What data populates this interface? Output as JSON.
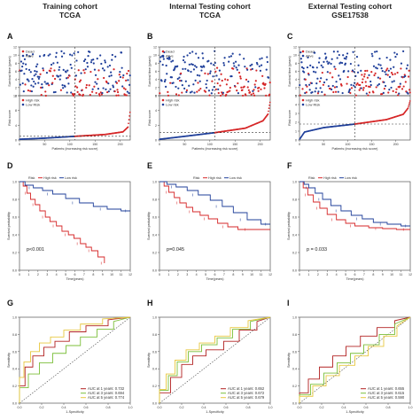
{
  "colors": {
    "dead": "#d62728",
    "alive": "#1f3f9a",
    "high_risk": "#d62728",
    "low_risk": "#1f3f9a",
    "auc_1y": "#b22222",
    "auc_3y": "#7cbf3a",
    "auc_5y": "#e8c840",
    "diagonal": "#444444"
  },
  "columns": [
    {
      "title": "Training cohort",
      "subtitle": "TCGA"
    },
    {
      "title": "Internal Testing cohort",
      "subtitle": "TCGA"
    },
    {
      "title": "External Testing cohort",
      "subtitle": "GSE17538"
    }
  ],
  "chart_data": [
    {
      "panel": "A",
      "type": "scatter",
      "subtype": "risk_plot",
      "n_patients": 220,
      "cutoff_patient": 110,
      "top": {
        "ylabel": "Survival time (years)",
        "ylim": [
          0,
          12
        ],
        "yticks": [
          0,
          2,
          4,
          6,
          8,
          10,
          12
        ],
        "legend": [
          "Dead",
          "Alive"
        ],
        "legend_position": "top-left"
      },
      "bottom": {
        "ylabel": "Risk score",
        "ylim": [
          0,
          12
        ],
        "yticks": [
          0,
          4,
          8,
          12
        ],
        "threshold": 1.0,
        "legend": [
          "High risk",
          "Low Risk"
        ],
        "legend_position": "top-left",
        "risk_curve": [
          [
            0,
            0.2
          ],
          [
            50,
            0.5
          ],
          [
            110,
            1.0
          ],
          [
            170,
            1.5
          ],
          [
            205,
            2.2
          ],
          [
            215,
            3.5
          ],
          [
            220,
            8.5
          ]
        ]
      },
      "xlabel": "Patients (increasing risk socre)",
      "xticks": [
        0,
        50,
        100,
        150,
        200
      ]
    },
    {
      "panel": "B",
      "type": "scatter",
      "subtype": "risk_plot",
      "n_patients": 220,
      "cutoff_patient": 110,
      "top": {
        "ylabel": "Survival time (years)",
        "ylim": [
          0,
          12
        ],
        "yticks": [
          0,
          2,
          4,
          6,
          8,
          10,
          12
        ],
        "legend": [
          "Dead",
          "Alive"
        ],
        "legend_position": "top-left"
      },
      "bottom": {
        "ylabel": "Risk score",
        "ylim": [
          0,
          6
        ],
        "yticks": [
          0,
          2,
          4,
          6
        ],
        "threshold": 1.0,
        "legend": [
          "High risk",
          "Low risk"
        ],
        "legend_position": "top-left",
        "risk_curve": [
          [
            0,
            0.1
          ],
          [
            50,
            0.5
          ],
          [
            110,
            1.0
          ],
          [
            170,
            1.6
          ],
          [
            205,
            2.6
          ],
          [
            215,
            3.5
          ],
          [
            220,
            5.5
          ]
        ]
      },
      "xlabel": "Patients (increasing risk score)",
      "xticks": [
        0,
        50,
        100,
        150,
        200
      ]
    },
    {
      "panel": "C",
      "type": "scatter",
      "subtype": "risk_plot",
      "n_patients": 230,
      "cutoff_patient": 115,
      "top": {
        "ylabel": "Survival time (years)",
        "ylim": [
          0,
          12
        ],
        "yticks": [
          0,
          2,
          4,
          6,
          8,
          10,
          12
        ],
        "legend": [
          "Dead",
          "Alive"
        ],
        "legend_position": "top-left"
      },
      "bottom": {
        "ylabel": "Risk score",
        "ylim": [
          0,
          5
        ],
        "yticks": [
          0,
          1,
          2,
          3,
          4,
          5
        ],
        "threshold": 1.8,
        "legend": [
          "High risk",
          "Low Risk"
        ],
        "legend_position": "top-left",
        "risk_curve": [
          [
            0,
            0.1
          ],
          [
            10,
            0.9
          ],
          [
            50,
            1.4
          ],
          [
            115,
            1.8
          ],
          [
            180,
            2.3
          ],
          [
            215,
            2.9
          ],
          [
            225,
            3.6
          ],
          [
            230,
            4.6
          ]
        ]
      },
      "xlabel": "Patients (increasing risk score)",
      "xticks": [
        0,
        50,
        100,
        150,
        200
      ]
    },
    {
      "panel": "D",
      "type": "line",
      "subtype": "kaplan_meier",
      "xlabel": "Time(years)",
      "ylabel": "Survival probability",
      "xlim": [
        0,
        12
      ],
      "ylim": [
        0,
        1
      ],
      "xticks": [
        0,
        1,
        2,
        3,
        4,
        5,
        6,
        7,
        8,
        9,
        10,
        11,
        12
      ],
      "yticks": [
        0.0,
        0.2,
        0.4,
        0.6,
        0.8,
        1.0
      ],
      "legend_title": "Risk",
      "legend": [
        "High risk",
        "Low risk"
      ],
      "legend_position": "top-left",
      "annotation": "p<0.001",
      "series": [
        {
          "name": "High risk",
          "x": [
            0,
            0.4,
            0.8,
            1.2,
            1.7,
            2.2,
            2.8,
            3.3,
            4.0,
            4.6,
            5.3,
            5.9,
            6.6,
            7.2,
            7.8,
            8.5,
            9.2
          ],
          "y": [
            1.0,
            0.95,
            0.87,
            0.8,
            0.74,
            0.67,
            0.6,
            0.55,
            0.5,
            0.44,
            0.4,
            0.36,
            0.3,
            0.26,
            0.22,
            0.15,
            0.08
          ]
        },
        {
          "name": "Low risk",
          "x": [
            0,
            0.6,
            1.5,
            2.5,
            3.6,
            5.0,
            6.5,
            8.0,
            9.5,
            11.0,
            12.0
          ],
          "y": [
            1.0,
            0.96,
            0.93,
            0.9,
            0.86,
            0.81,
            0.76,
            0.72,
            0.69,
            0.67,
            0.67
          ]
        }
      ]
    },
    {
      "panel": "E",
      "type": "line",
      "subtype": "kaplan_meier",
      "xlabel": "Time(years)",
      "ylabel": "Survival probability",
      "xlim": [
        0,
        12
      ],
      "ylim": [
        0,
        1
      ],
      "xticks": [
        0,
        1,
        2,
        3,
        4,
        5,
        6,
        7,
        8,
        9,
        10,
        11,
        12
      ],
      "yticks": [
        0.0,
        0.2,
        0.4,
        0.6,
        0.8,
        1.0
      ],
      "legend_title": "Risk",
      "legend": [
        "High risk",
        "Low risk"
      ],
      "legend_position": "top-center",
      "annotation": "p=0.045",
      "series": [
        {
          "name": "High risk",
          "x": [
            0,
            0.5,
            1.0,
            1.6,
            2.2,
            2.9,
            3.6,
            4.4,
            5.3,
            6.3,
            7.4,
            8.5,
            10.0,
            12.0
          ],
          "y": [
            1.0,
            0.95,
            0.88,
            0.82,
            0.76,
            0.71,
            0.66,
            0.62,
            0.58,
            0.53,
            0.49,
            0.46,
            0.46,
            0.46
          ]
        },
        {
          "name": "Low risk",
          "x": [
            0,
            0.8,
            1.8,
            3.0,
            4.2,
            5.5,
            6.8,
            8.0,
            9.5,
            11.0,
            12.0
          ],
          "y": [
            1.0,
            0.97,
            0.94,
            0.9,
            0.85,
            0.79,
            0.72,
            0.65,
            0.57,
            0.52,
            0.52
          ]
        }
      ]
    },
    {
      "panel": "F",
      "type": "line",
      "subtype": "kaplan_meier",
      "xlabel": "Time(years)",
      "ylabel": "Survival probability",
      "xlim": [
        0,
        12
      ],
      "ylim": [
        0,
        1
      ],
      "xticks": [
        0,
        1,
        2,
        3,
        4,
        5,
        6,
        7,
        8,
        9,
        10,
        11,
        12
      ],
      "yticks": [
        0.0,
        0.2,
        0.4,
        0.6,
        0.8,
        1.0
      ],
      "legend_title": "Risk",
      "legend": [
        "High risk",
        "Low risk"
      ],
      "legend_position": "top-left",
      "annotation": "p = 0.033",
      "series": [
        {
          "name": "High risk",
          "x": [
            0,
            0.4,
            0.9,
            1.5,
            2.2,
            3.0,
            4.0,
            5.0,
            6.0,
            7.5,
            9.0,
            10.5,
            12.0
          ],
          "y": [
            1.0,
            0.93,
            0.85,
            0.77,
            0.7,
            0.63,
            0.57,
            0.53,
            0.5,
            0.48,
            0.47,
            0.46,
            0.46
          ]
        },
        {
          "name": "Low risk",
          "x": [
            0,
            0.5,
            1.0,
            1.7,
            2.5,
            3.4,
            4.5,
            5.6,
            6.8,
            8.0,
            9.5,
            11.0,
            12.0
          ],
          "y": [
            1.0,
            0.97,
            0.93,
            0.87,
            0.8,
            0.73,
            0.67,
            0.62,
            0.58,
            0.54,
            0.52,
            0.5,
            0.5
          ]
        }
      ]
    },
    {
      "panel": "G",
      "type": "line",
      "subtype": "roc",
      "xlabel": "1-Specificity",
      "ylabel": "Sensitivity",
      "xlim": [
        0,
        1
      ],
      "ylim": [
        0,
        1
      ],
      "xticks": [
        0.0,
        0.2,
        0.4,
        0.6,
        0.8,
        1.0
      ],
      "yticks": [
        0.0,
        0.2,
        0.4,
        0.6,
        0.8,
        1.0
      ],
      "legend_position": "bottom-right",
      "series": [
        {
          "name": "AUC at 1 years: 0.732",
          "x": [
            0,
            0,
            0.05,
            0.05,
            0.12,
            0.12,
            0.22,
            0.22,
            0.32,
            0.32,
            0.45,
            0.45,
            0.6,
            0.6,
            0.8,
            0.8,
            1.0
          ],
          "y": [
            0,
            0.2,
            0.2,
            0.42,
            0.42,
            0.55,
            0.55,
            0.65,
            0.65,
            0.72,
            0.72,
            0.83,
            0.83,
            0.9,
            0.9,
            0.97,
            1.0
          ]
        },
        {
          "name": "AUC at 3 years: 0.694",
          "x": [
            0,
            0,
            0.08,
            0.08,
            0.18,
            0.18,
            0.3,
            0.3,
            0.42,
            0.42,
            0.55,
            0.55,
            0.7,
            0.7,
            0.85,
            0.85,
            1.0
          ],
          "y": [
            0,
            0.18,
            0.18,
            0.34,
            0.34,
            0.47,
            0.47,
            0.58,
            0.58,
            0.67,
            0.67,
            0.77,
            0.77,
            0.86,
            0.86,
            0.95,
            1.0
          ]
        },
        {
          "name": "AUC at 5 years: 0.774",
          "x": [
            0,
            0,
            0.04,
            0.04,
            0.1,
            0.1,
            0.18,
            0.18,
            0.28,
            0.28,
            0.4,
            0.4,
            0.55,
            0.55,
            0.75,
            0.75,
            1.0
          ],
          "y": [
            0,
            0.3,
            0.3,
            0.48,
            0.48,
            0.6,
            0.6,
            0.7,
            0.7,
            0.77,
            0.77,
            0.85,
            0.85,
            0.92,
            0.92,
            0.98,
            1.0
          ]
        }
      ]
    },
    {
      "panel": "H",
      "type": "line",
      "subtype": "roc",
      "xlabel": "1-Specificity",
      "ylabel": "Sensitivity",
      "xlim": [
        0,
        1
      ],
      "ylim": [
        0,
        1
      ],
      "xticks": [
        0.0,
        0.2,
        0.4,
        0.6,
        0.8,
        1.0
      ],
      "yticks": [
        0.0,
        0.2,
        0.4,
        0.6,
        0.8,
        1.0
      ],
      "legend_position": "bottom-right",
      "series": [
        {
          "name": "AUC at 1 years: 0.652",
          "x": [
            0,
            0,
            0.1,
            0.1,
            0.2,
            0.2,
            0.3,
            0.3,
            0.42,
            0.42,
            0.58,
            0.58,
            0.72,
            0.72,
            0.88,
            0.88,
            1.0
          ],
          "y": [
            0,
            0.12,
            0.12,
            0.3,
            0.3,
            0.45,
            0.45,
            0.55,
            0.55,
            0.62,
            0.62,
            0.72,
            0.72,
            0.85,
            0.85,
            0.95,
            1.0
          ]
        },
        {
          "name": "AUC at 3 years: 0.672",
          "x": [
            0,
            0,
            0.08,
            0.08,
            0.16,
            0.16,
            0.26,
            0.26,
            0.38,
            0.38,
            0.52,
            0.52,
            0.66,
            0.66,
            0.82,
            0.82,
            1.0
          ],
          "y": [
            0,
            0.15,
            0.15,
            0.32,
            0.32,
            0.48,
            0.48,
            0.6,
            0.6,
            0.68,
            0.68,
            0.76,
            0.76,
            0.86,
            0.86,
            0.95,
            1.0
          ]
        },
        {
          "name": "AUC at 5 years: 0.679",
          "x": [
            0,
            0,
            0.06,
            0.06,
            0.14,
            0.14,
            0.24,
            0.24,
            0.36,
            0.36,
            0.5,
            0.5,
            0.64,
            0.64,
            0.8,
            0.8,
            1.0
          ],
          "y": [
            0,
            0.16,
            0.16,
            0.34,
            0.34,
            0.5,
            0.5,
            0.62,
            0.62,
            0.7,
            0.7,
            0.78,
            0.78,
            0.88,
            0.88,
            0.96,
            1.0
          ]
        }
      ]
    },
    {
      "panel": "I",
      "type": "line",
      "subtype": "roc",
      "xlabel": "1-Specificity",
      "ylabel": "Sensitivity",
      "xlim": [
        0,
        1
      ],
      "ylim": [
        0,
        1
      ],
      "xticks": [
        0.0,
        0.2,
        0.4,
        0.6,
        0.8,
        1.0
      ],
      "yticks": [
        0.0,
        0.2,
        0.4,
        0.6,
        0.8,
        1.0
      ],
      "legend_position": "bottom-right",
      "series": [
        {
          "name": "AUC at 1 years: 0.655",
          "x": [
            0,
            0,
            0.08,
            0.08,
            0.18,
            0.18,
            0.3,
            0.3,
            0.42,
            0.42,
            0.55,
            0.55,
            0.7,
            0.7,
            0.86,
            0.86,
            1.0
          ],
          "y": [
            0,
            0.12,
            0.12,
            0.28,
            0.28,
            0.42,
            0.42,
            0.55,
            0.55,
            0.66,
            0.66,
            0.78,
            0.78,
            0.88,
            0.88,
            0.96,
            1.0
          ]
        },
        {
          "name": "AUC at 3 years: 0.615",
          "x": [
            0,
            0,
            0.1,
            0.1,
            0.22,
            0.22,
            0.34,
            0.34,
            0.46,
            0.46,
            0.58,
            0.58,
            0.72,
            0.72,
            0.86,
            0.86,
            1.0
          ],
          "y": [
            0,
            0.1,
            0.1,
            0.22,
            0.22,
            0.35,
            0.35,
            0.47,
            0.47,
            0.58,
            0.58,
            0.68,
            0.68,
            0.8,
            0.8,
            0.92,
            1.0
          ]
        },
        {
          "name": "AUC at 5 years: 0.590",
          "x": [
            0,
            0,
            0.12,
            0.12,
            0.24,
            0.24,
            0.36,
            0.36,
            0.5,
            0.5,
            0.62,
            0.62,
            0.76,
            0.76,
            0.88,
            0.88,
            1.0
          ],
          "y": [
            0,
            0.08,
            0.08,
            0.2,
            0.2,
            0.32,
            0.32,
            0.44,
            0.44,
            0.55,
            0.55,
            0.66,
            0.66,
            0.78,
            0.78,
            0.9,
            1.0
          ]
        }
      ]
    }
  ]
}
